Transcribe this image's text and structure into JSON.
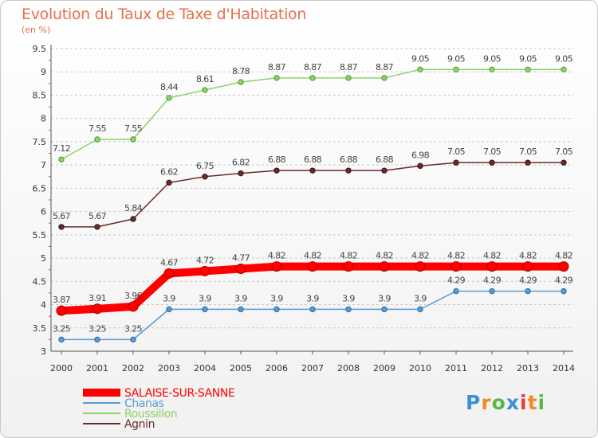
{
  "header": {
    "title": "Evolution du Taux de Taxe d'Habitation",
    "unit": "(en %)"
  },
  "logo": {
    "text": "Proxiti",
    "colors": [
      "#3b8fd6",
      "#f08a24",
      "#58b847",
      "#3b8fd6",
      "#e23e3e",
      "#f08a24",
      "#58b847"
    ]
  },
  "chart_data": {
    "type": "line",
    "title": "Evolution du Taux de Taxe d'Habitation",
    "ylabel": "(en %)",
    "xlabel": "",
    "ylim": [
      3,
      9.5
    ],
    "yticks": [
      "3",
      "3.5",
      "4",
      "4.5",
      "5",
      "5.5",
      "6",
      "6.5",
      "7",
      "7.5",
      "8",
      "8.5",
      "9",
      "9.5"
    ],
    "categories": [
      "2000",
      "2001",
      "2002",
      "2003",
      "2004",
      "2005",
      "2006",
      "2007",
      "2008",
      "2009",
      "2010",
      "2011",
      "2012",
      "2013",
      "2014"
    ],
    "grid": "horizontal dashed",
    "legend_position": "bottom-left",
    "series": [
      {
        "name": "SALAISE-SUR-SANNE",
        "color": "#ff0000",
        "values": [
          3.87,
          3.91,
          3.96,
          4.67,
          4.72,
          4.77,
          4.82,
          4.82,
          4.82,
          4.82,
          4.82,
          4.82,
          4.82,
          4.82,
          4.82
        ],
        "labels": [
          "3.87",
          "3.91",
          "3.96",
          "4.67",
          "4.72",
          "4.77",
          "4.82",
          "4.82",
          "4.82",
          "4.82",
          "4.82",
          "4.82",
          "4.82",
          "4.82",
          "4.82"
        ]
      },
      {
        "name": "Chanas",
        "color": "#5b9bd5",
        "values": [
          3.25,
          3.25,
          3.25,
          3.9,
          3.9,
          3.9,
          3.9,
          3.9,
          3.9,
          3.9,
          3.9,
          4.29,
          4.29,
          4.29,
          4.29
        ],
        "labels": [
          "3.25",
          "3.25",
          "3.25",
          "3.9",
          "3.9",
          "3.9",
          "3.9",
          "3.9",
          "3.9",
          "3.9",
          "3.9",
          "4.29",
          "4.29",
          "4.29",
          "4.29"
        ]
      },
      {
        "name": "Roussillon",
        "color": "#8fd16b",
        "values": [
          7.12,
          7.55,
          7.55,
          8.44,
          8.61,
          8.78,
          8.87,
          8.87,
          8.87,
          8.87,
          9.05,
          9.05,
          9.05,
          9.05,
          9.05
        ],
        "labels": [
          "7.12",
          "7.55",
          "7.55",
          "8.44",
          "8.61",
          "8.78",
          "8.87",
          "8.87",
          "8.87",
          "8.87",
          "9.05",
          "9.05",
          "9.05",
          "9.05",
          "9.05"
        ]
      },
      {
        "name": "Agnin",
        "color": "#6b2a2a",
        "values": [
          5.67,
          5.67,
          5.84,
          6.62,
          6.75,
          6.82,
          6.88,
          6.88,
          6.88,
          6.88,
          6.98,
          7.05,
          7.05,
          7.05,
          7.05
        ],
        "labels": [
          "5.67",
          "5.67",
          "5.84",
          "6.62",
          "6.75",
          "6.82",
          "6.88",
          "6.88",
          "6.88",
          "6.88",
          "6.98",
          "7.05",
          "7.05",
          "7.05",
          "7.05"
        ]
      }
    ]
  }
}
